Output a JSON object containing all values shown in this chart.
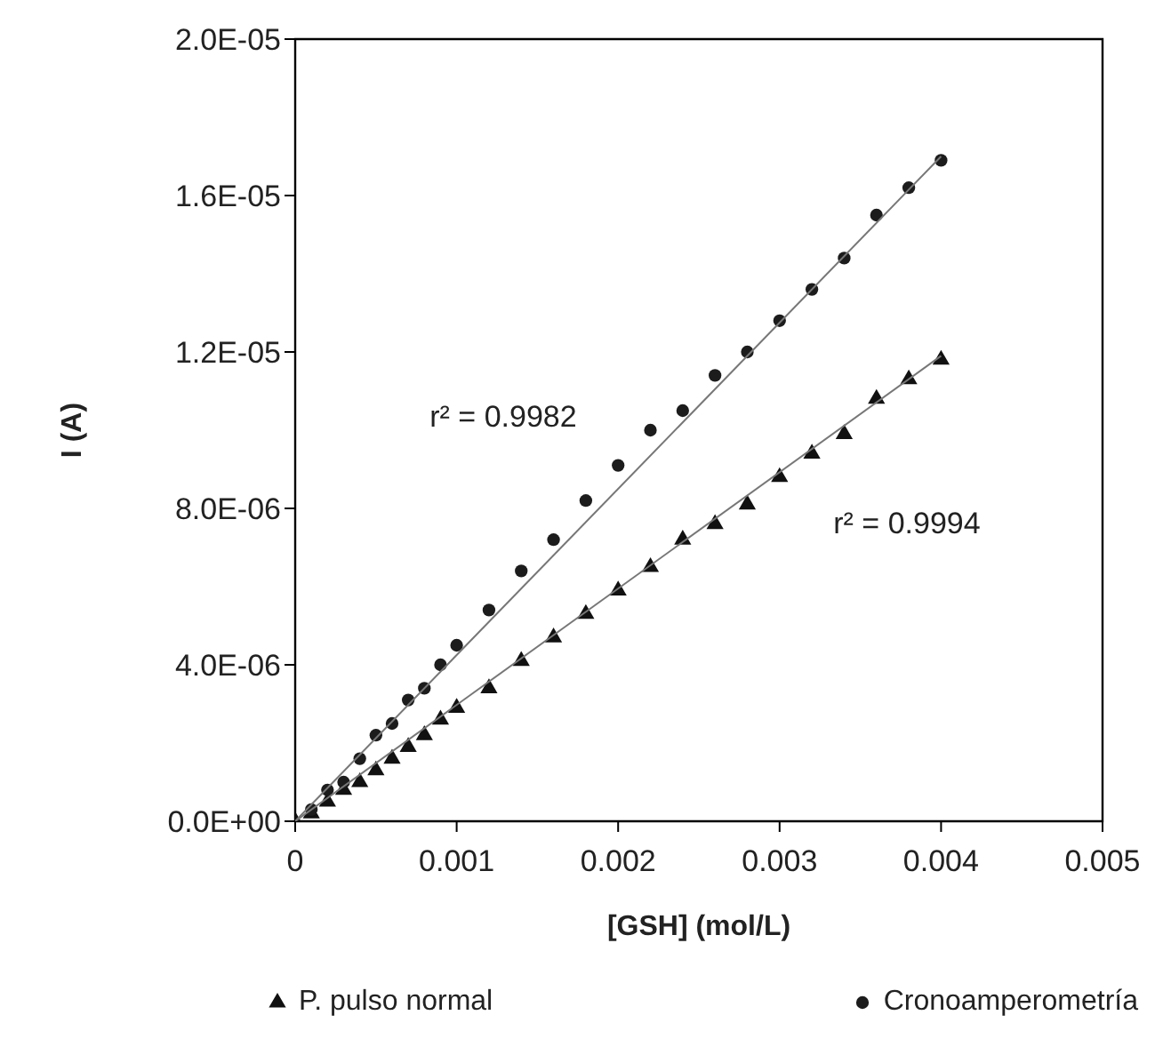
{
  "chart_data": {
    "type": "scatter",
    "xlabel": "[GSH] (mol/L)",
    "ylabel": "I (A)",
    "xlim": [
      0,
      0.005
    ],
    "xticks": [
      0,
      0.001,
      0.002,
      0.003,
      0.004,
      0.005
    ],
    "ylim": [
      0,
      2e-05
    ],
    "yticks": [
      {
        "value": 0,
        "label": "0.0E+00"
      },
      {
        "value": 4e-06,
        "label": "4.0E-06"
      },
      {
        "value": 8e-06,
        "label": "8.0E-06"
      },
      {
        "value": 1.2e-05,
        "label": "1.2E-05"
      },
      {
        "value": 1.6e-05,
        "label": "1.6E-05"
      },
      {
        "value": 2e-05,
        "label": "2.0E-05"
      }
    ],
    "grid": false,
    "legend": "bottom",
    "series": [
      {
        "name": "P. pulso normal",
        "color": "#111111",
        "marker": "triangle",
        "x": [
          0,
          0.0001,
          0.0002,
          0.0003,
          0.0004,
          0.0005,
          0.0006,
          0.0007,
          0.0008,
          0.0009,
          0.001,
          0.0012,
          0.0014,
          0.0016,
          0.0018,
          0.002,
          0.0022,
          0.0024,
          0.0026,
          0.0028,
          0.003,
          0.0032,
          0.0034,
          0.0036,
          0.0038,
          0.004
        ],
        "values": [
          0,
          2e-07,
          5e-07,
          8e-07,
          1e-06,
          1.3e-06,
          1.6e-06,
          1.9e-06,
          2.2e-06,
          2.6e-06,
          2.9e-06,
          3.4e-06,
          4.1e-06,
          4.7e-06,
          5.3e-06,
          5.9e-06,
          6.5e-06,
          7.2e-06,
          7.6e-06,
          8.1e-06,
          8.8e-06,
          9.4e-06,
          9.9e-06,
          1.08e-05,
          1.13e-05,
          1.18e-05
        ]
      },
      {
        "name": "Cronoamperometría",
        "color": "#1c1c1c",
        "marker": "circle",
        "x": [
          0.0001,
          0.0002,
          0.0003,
          0.0004,
          0.0005,
          0.0006,
          0.0007,
          0.0008,
          0.0009,
          0.001,
          0.0012,
          0.0014,
          0.0016,
          0.0018,
          0.002,
          0.0022,
          0.0024,
          0.0026,
          0.0028,
          0.003,
          0.0032,
          0.0034,
          0.0036,
          0.0038,
          0.004
        ],
        "values": [
          3e-07,
          8e-07,
          1e-06,
          1.6e-06,
          2.2e-06,
          2.5e-06,
          3.1e-06,
          3.4e-06,
          4e-06,
          4.5e-06,
          5.4e-06,
          6.4e-06,
          7.2e-06,
          8.2e-06,
          9.1e-06,
          1e-05,
          1.05e-05,
          1.14e-05,
          1.2e-05,
          1.28e-05,
          1.36e-05,
          1.44e-05,
          1.55e-05,
          1.62e-05,
          1.69e-05
        ]
      },
      {
        "type": "line",
        "color": "#777777",
        "marker": "none",
        "x": [
          0,
          0.004
        ],
        "values": [
          0,
          1.19e-05
        ]
      },
      {
        "type": "line",
        "color": "#777777",
        "marker": "none",
        "x": [
          0,
          0.004
        ],
        "values": [
          0,
          1.7e-05
        ]
      }
    ],
    "annotations": [
      "r² = 0.9982",
      "r² = 0.9994"
    ]
  }
}
